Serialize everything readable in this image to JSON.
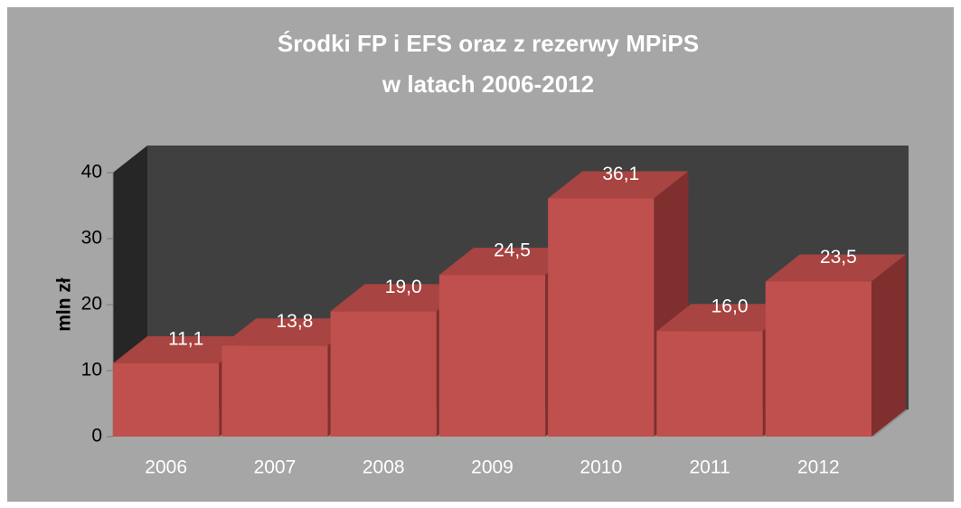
{
  "chart_data": {
    "type": "bar",
    "title": "Środki FP i EFS oraz z rezerwy MPiPS",
    "subtitle": "w latach 2006-2012",
    "y_label": "mln zł",
    "categories": [
      "2006",
      "2007",
      "2008",
      "2009",
      "2010",
      "2011",
      "2012"
    ],
    "values": [
      11.1,
      13.8,
      19.0,
      24.5,
      36.1,
      16.0,
      23.5
    ],
    "value_labels": [
      "11,1",
      "13,8",
      "19,0",
      "24,5",
      "36,1",
      "16,0",
      "23,5"
    ],
    "color": "#c0504d",
    "ylim": [
      0,
      40
    ],
    "yticks": [
      0,
      10,
      20,
      30,
      40
    ]
  }
}
